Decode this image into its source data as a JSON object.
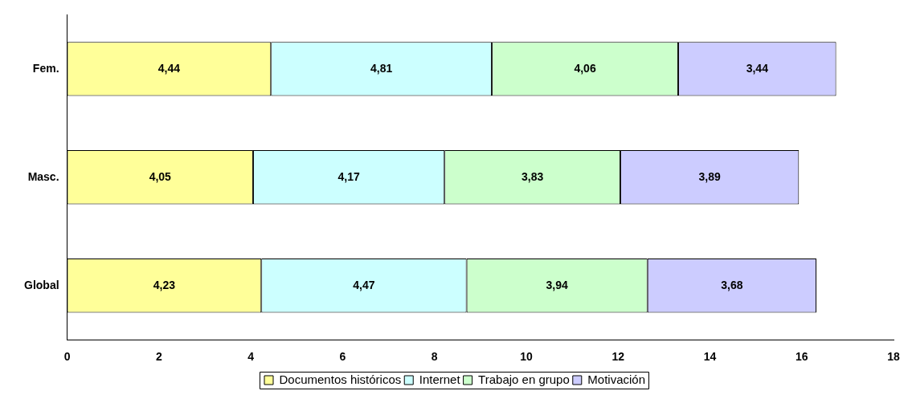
{
  "chart_data": {
    "type": "bar",
    "orientation": "horizontal",
    "stacked": true,
    "categories": [
      "Fem.",
      "Masc.",
      "Global"
    ],
    "series": [
      {
        "name": "Documentos históricos",
        "color": "#ffff99",
        "values": [
          4.44,
          4.05,
          4.23
        ],
        "value_labels": [
          "4,44",
          "4,05",
          "4,23"
        ]
      },
      {
        "name": "Internet",
        "color": "#ccffff",
        "values": [
          4.81,
          4.17,
          4.47
        ],
        "value_labels": [
          "4,81",
          "4,17",
          "4,47"
        ]
      },
      {
        "name": "Trabajo en grupo",
        "color": "#ccffcc",
        "values": [
          4.06,
          3.83,
          3.94
        ],
        "value_labels": [
          "4,06",
          "3,83",
          "3,94"
        ]
      },
      {
        "name": "Motivación",
        "color": "#ccccff",
        "values": [
          3.44,
          3.89,
          3.68
        ],
        "value_labels": [
          "3,44",
          "3,89",
          "3,68"
        ]
      }
    ],
    "xlim": [
      0,
      18
    ],
    "xticks": [
      0,
      2,
      4,
      6,
      8,
      10,
      12,
      14,
      16,
      18
    ],
    "grid": false,
    "legend": "bottom"
  }
}
